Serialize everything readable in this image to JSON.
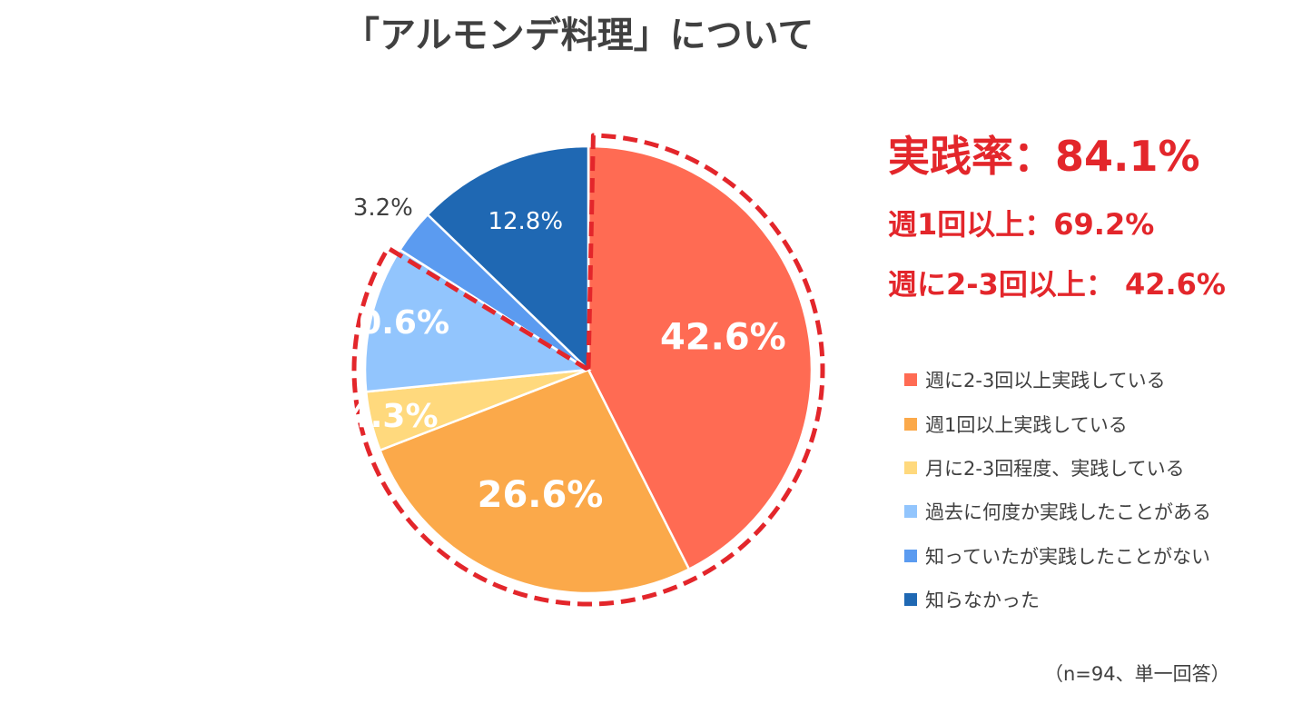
{
  "title": "「アルモンデ料理」について",
  "summary": {
    "main": "実践率：84.1%",
    "line1": "週1回以上：69.2%",
    "line2": "週に2-3回以上： 42.6%"
  },
  "note": "（n=94、単一回答）",
  "chart_data": {
    "type": "pie",
    "title": "「アルモンデ料理」について",
    "start_angle_deg": 0,
    "direction": "clockwise",
    "slices": [
      {
        "label": "週に2-3回以上実践している",
        "value": 42.6,
        "display": "42.6%",
        "color": "#ff6b53",
        "label_color": "#ffffff",
        "label_bold": true
      },
      {
        "label": "週1回以上実践している",
        "value": 26.6,
        "display": "26.6%",
        "color": "#fba94a",
        "label_color": "#ffffff",
        "label_bold": true
      },
      {
        "label": "月に2-3回程度、実践している",
        "value": 4.3,
        "display": "4.3%",
        "color": "#ffd97d",
        "label_color": "#ffffff",
        "label_bold": true
      },
      {
        "label": "過去に何度か実践したことがある",
        "value": 10.6,
        "display": "10.6%",
        "color": "#92c5fd",
        "label_color": "#ffffff",
        "label_bold": true
      },
      {
        "label": "知っていたが実践したことがない",
        "value": 3.2,
        "display": "3.2%",
        "color": "#5b9bf0",
        "label_color": "#404040",
        "label_bold": false
      },
      {
        "label": "知らなかった",
        "value": 12.8,
        "display": "12.8%",
        "color": "#1f68b3",
        "label_color": "#ffffff",
        "label_bold": false
      }
    ],
    "highlight": {
      "covers": [
        "週に2-3回以上実践している",
        "週1回以上実践している",
        "月に2-3回程度、実践している",
        "過去に何度か実践したことがある"
      ],
      "color": "#e3262b",
      "style": "dashed"
    },
    "legend_position": "right"
  }
}
